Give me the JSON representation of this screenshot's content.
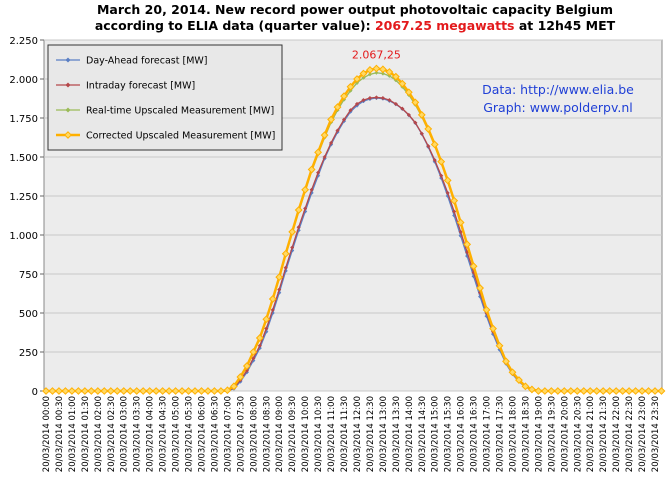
{
  "chart_data": {
    "type": "line",
    "title": "March 20, 2014. New record power output  photovoltaic  capacity Belgium",
    "subtitle": {
      "prefix": "according to ELIA data (quarter value): ",
      "highlight": "2067.25 megawatts",
      "suffix": " at 12h45 MET"
    },
    "annotations": [
      "Data:  http://www.elia.be",
      "Graph:  www.polderpv.nl"
    ],
    "legend": "upper left",
    "grid": true,
    "ylim": [
      0,
      2250
    ],
    "yticks": [
      0,
      250,
      500,
      750,
      {
        "value": 1000,
        "label": "1.000"
      },
      {
        "value": 1250,
        "label": "1.250"
      },
      {
        "value": 1500,
        "label": "1.500"
      },
      {
        "value": 1750,
        "label": "1.750"
      },
      {
        "value": 2000,
        "label": "2.000"
      },
      {
        "value": 2250,
        "label": "2.250"
      }
    ],
    "categories": [
      "20/03/2014 00:00",
      null,
      "20/03/2014 00:30",
      null,
      "20/03/2014 01:00",
      null,
      "20/03/2014 01:30",
      null,
      "20/03/2014 02:00",
      null,
      "20/03/2014 02:30",
      null,
      "20/03/2014 03:00",
      null,
      "20/03/2014 03:30",
      null,
      "20/03/2014 04:00",
      null,
      "20/03/2014 04:30",
      null,
      "20/03/2014 05:00",
      null,
      "20/03/2014 05:30",
      null,
      "20/03/2014 06:00",
      null,
      "20/03/2014 06:30",
      null,
      "20/03/2014 07:00",
      null,
      "20/03/2014 07:30",
      null,
      "20/03/2014 08:00",
      null,
      "20/03/2014 08:30",
      null,
      "20/03/2014 09:00",
      null,
      "20/03/2014 09:30",
      null,
      "20/03/2014 10:00",
      null,
      "20/03/2014 10:30",
      null,
      "20/03/2014 11:00",
      null,
      "20/03/2014 11:30",
      null,
      "20/03/2014 12:00",
      null,
      "20/03/2014 12:30",
      null,
      "20/03/2014 13:00",
      null,
      "20/03/2014 13:30",
      null,
      "20/03/2014 14:00",
      null,
      "20/03/2014 14:30",
      null,
      "20/03/2014 15:00",
      null,
      "20/03/2014 15:30",
      null,
      "20/03/2014 16:00",
      null,
      "20/03/2014 16:30",
      null,
      "20/03/2014 17:00",
      null,
      "20/03/2014 17:30",
      null,
      "20/03/2014 18:00",
      null,
      "20/03/2014 18:30",
      null,
      "20/03/2014 19:00",
      null,
      "20/03/2014 19:30",
      null,
      "20/03/2014 20:00",
      null,
      "20/03/2014 20:30",
      null,
      "20/03/2014 21:00",
      null,
      "20/03/2014 21:30",
      null,
      "20/03/2014 22:00",
      null,
      "20/03/2014 22:30",
      null,
      "20/03/2014 23:00",
      null,
      "20/03/2014 23:30",
      null
    ],
    "series": [
      {
        "name": "Day-Ahead forecast [MW]",
        "color": "#5a7fc4",
        "values": [
          0,
          0,
          0,
          0,
          0,
          0,
          0,
          0,
          0,
          0,
          0,
          0,
          0,
          0,
          0,
          0,
          0,
          0,
          0,
          0,
          0,
          0,
          0,
          0,
          0,
          0,
          0,
          0,
          0,
          15,
          60,
          120,
          195,
          275,
          380,
          500,
          630,
          770,
          900,
          1030,
          1150,
          1270,
          1380,
          1490,
          1580,
          1660,
          1730,
          1790,
          1830,
          1858,
          1872,
          1878,
          1874,
          1860,
          1838,
          1808,
          1768,
          1718,
          1648,
          1565,
          1470,
          1365,
          1250,
          1125,
          995,
          865,
          735,
          605,
          480,
          365,
          265,
          175,
          108,
          60,
          25,
          7,
          0,
          0,
          0,
          0,
          0,
          0,
          0,
          0,
          0,
          0,
          0,
          0,
          0,
          0,
          0,
          0,
          0,
          0,
          0,
          0
        ]
      },
      {
        "name": "Intraday forecast [MW]",
        "color": "#b5484b",
        "values": [
          0,
          0,
          0,
          0,
          0,
          0,
          0,
          0,
          0,
          0,
          0,
          0,
          0,
          0,
          0,
          0,
          0,
          0,
          0,
          0,
          0,
          0,
          0,
          0,
          0,
          0,
          0,
          0,
          0,
          20,
          70,
          130,
          210,
          290,
          400,
          520,
          650,
          790,
          920,
          1050,
          1170,
          1290,
          1400,
          1500,
          1590,
          1670,
          1740,
          1800,
          1840,
          1865,
          1878,
          1882,
          1878,
          1865,
          1840,
          1810,
          1770,
          1720,
          1650,
          1570,
          1480,
          1380,
          1270,
          1150,
          1020,
          890,
          760,
          630,
          500,
          380,
          280,
          185,
          115,
          65,
          28,
          8,
          0,
          0,
          0,
          0,
          0,
          0,
          0,
          0,
          0,
          0,
          0,
          0,
          0,
          0,
          0,
          0,
          0,
          0,
          0,
          0
        ]
      },
      {
        "name": "Real-time Upscaled Measurement [MW]",
        "color": "#9bbb59",
        "values": [
          0,
          0,
          0,
          0,
          0,
          0,
          0,
          0,
          0,
          0,
          0,
          0,
          0,
          0,
          0,
          0,
          0,
          0,
          0,
          0,
          0,
          0,
          0,
          0,
          0,
          0,
          0,
          0,
          5,
          30,
          88,
          158,
          248,
          338,
          456,
          585,
          725,
          872,
          1012,
          1150,
          1280,
          1408,
          1518,
          1625,
          1722,
          1800,
          1868,
          1925,
          1975,
          2008,
          2030,
          2040,
          2035,
          2020,
          1992,
          1950,
          1898,
          1835,
          1758,
          1670,
          1572,
          1462,
          1343,
          1213,
          1074,
          935,
          796,
          657,
          518,
          398,
          288,
          189,
          119,
          69,
          29,
          9,
          0,
          0,
          0,
          0,
          0,
          0,
          0,
          0,
          0,
          0,
          0,
          0,
          0,
          0,
          0,
          0,
          0,
          0,
          0,
          0
        ]
      },
      {
        "name": "Corrected Upscaled Measurement [MW]",
        "color": "#ffb000",
        "values": [
          0,
          0,
          0,
          0,
          0,
          0,
          0,
          0,
          0,
          0,
          0,
          0,
          0,
          0,
          0,
          0,
          0,
          0,
          0,
          0,
          0,
          0,
          0,
          0,
          0,
          0,
          0,
          0,
          5,
          30,
          90,
          160,
          250,
          340,
          460,
          590,
          730,
          880,
          1020,
          1160,
          1290,
          1420,
          1530,
          1640,
          1740,
          1820,
          1890,
          1950,
          2000,
          2035,
          2058,
          2067.25,
          2062,
          2045,
          2015,
          1970,
          1915,
          1850,
          1770,
          1680,
          1580,
          1470,
          1350,
          1220,
          1080,
          940,
          800,
          660,
          520,
          400,
          290,
          190,
          120,
          70,
          30,
          10,
          0,
          0,
          0,
          0,
          0,
          0,
          0,
          0,
          0,
          0,
          0,
          0,
          0,
          0,
          0,
          0,
          0,
          0,
          0,
          0
        ],
        "value_labels": [
          null,
          null,
          null,
          null,
          null,
          null,
          null,
          null,
          null,
          null,
          null,
          null,
          null,
          null,
          null,
          null,
          null,
          null,
          null,
          null,
          null,
          null,
          null,
          null,
          null,
          null,
          null,
          null,
          null,
          null,
          null,
          null,
          null,
          null,
          null,
          null,
          null,
          null,
          null,
          null,
          null,
          null,
          null,
          null,
          null,
          null,
          null,
          null,
          null,
          null,
          null,
          "2.067,25",
          null,
          null,
          null,
          null,
          null,
          null,
          null,
          null,
          null,
          null,
          null,
          null,
          null,
          null,
          null,
          null,
          null,
          null,
          null,
          null,
          null,
          null,
          null,
          null,
          null,
          null,
          null,
          null,
          null,
          null,
          null,
          null,
          null,
          null,
          null,
          null,
          null,
          null,
          null,
          null,
          null,
          null,
          null,
          null
        ]
      }
    ]
  }
}
